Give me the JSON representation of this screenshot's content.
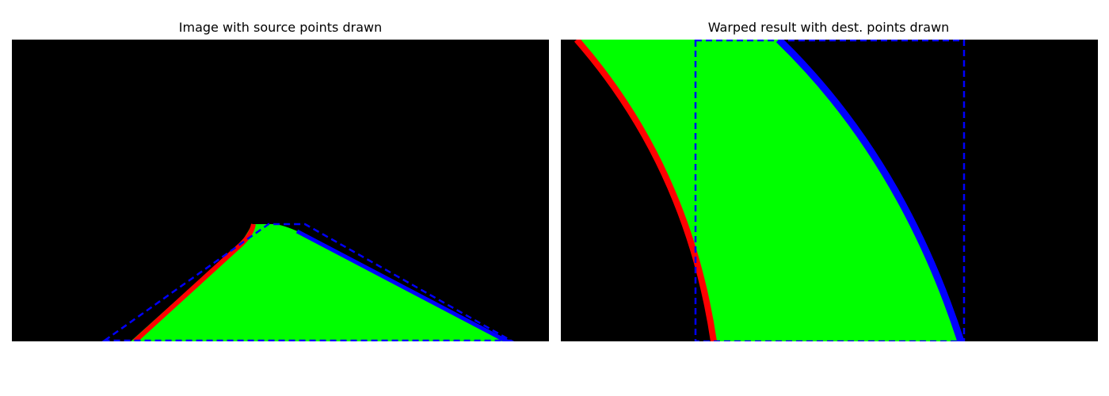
{
  "panels": {
    "left": {
      "title": "Image with source points drawn"
    },
    "right": {
      "title": "Warped result with dest. points drawn"
    }
  },
  "colors": {
    "background": "#000000",
    "lane_fill": "#00ff00",
    "left_line": "#ff0000",
    "right_line": "#0000ff",
    "points_outline": "#0000ff"
  }
}
